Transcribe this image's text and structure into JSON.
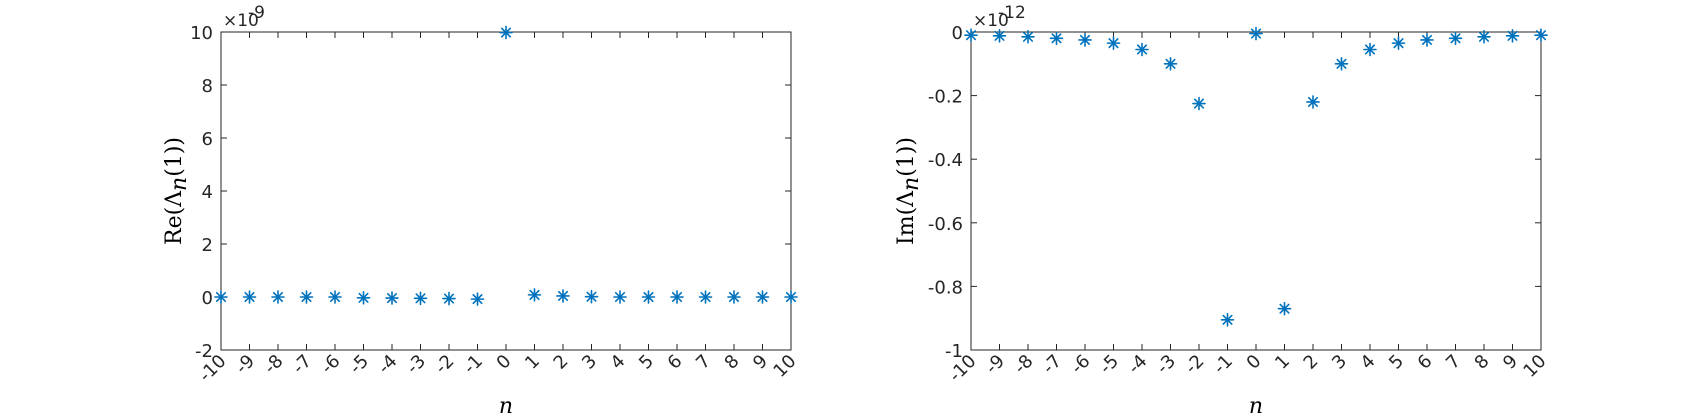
{
  "chart_data": [
    {
      "type": "scatter",
      "marker": "asterisk",
      "marker_color": "#0072BD",
      "title": "",
      "xlabel": "n",
      "ylabel": "Re(Λ_n(1))",
      "ylabel_parts": {
        "prefix": "Re(Λ",
        "sub": "n",
        "suffix": "(1))"
      },
      "y_exponent_label": "×10",
      "y_exponent": "-9",
      "xlim": [
        -10,
        10
      ],
      "ylim": [
        -2,
        10
      ],
      "x_ticks": [
        -10,
        -9,
        -8,
        -7,
        -6,
        -5,
        -4,
        -3,
        -2,
        -1,
        0,
        1,
        2,
        3,
        4,
        5,
        6,
        7,
        8,
        9,
        10
      ],
      "y_ticks": [
        -2,
        0,
        2,
        4,
        6,
        8,
        10
      ],
      "y_tick_labels": [
        "-2",
        "0",
        "2",
        "4",
        "6",
        "8",
        "10"
      ],
      "grid": false,
      "series": [
        {
          "x": [
            -10,
            -9,
            -8,
            -7,
            -6,
            -5,
            -4,
            -3,
            -2,
            -1,
            0,
            1,
            2,
            3,
            4,
            5,
            6,
            7,
            8,
            9,
            10
          ],
          "y": [
            0,
            0,
            0,
            0,
            0,
            -0.03,
            -0.04,
            -0.05,
            -0.06,
            -0.08,
            9.98,
            0.08,
            0.04,
            0.01,
            0,
            0,
            0,
            0,
            0,
            0,
            0
          ]
        }
      ]
    },
    {
      "type": "scatter",
      "marker": "asterisk",
      "marker_color": "#0072BD",
      "title": "",
      "xlabel": "n",
      "ylabel": "Im(Λ_n(1))",
      "ylabel_parts": {
        "prefix": "Im(Λ",
        "sub": "n",
        "suffix": "(1))"
      },
      "y_exponent_label": "×10",
      "y_exponent": "-12",
      "xlim": [
        -10,
        10
      ],
      "ylim": [
        -1,
        0
      ],
      "x_ticks": [
        -10,
        -9,
        -8,
        -7,
        -6,
        -5,
        -4,
        -3,
        -2,
        -1,
        0,
        1,
        2,
        3,
        4,
        5,
        6,
        7,
        8,
        9,
        10
      ],
      "y_ticks": [
        -1,
        -0.8,
        -0.6,
        -0.4,
        -0.2,
        0
      ],
      "y_tick_labels": [
        "-1",
        "-0.8",
        "-0.6",
        "-0.4",
        "-0.2",
        "0"
      ],
      "grid": false,
      "series": [
        {
          "x": [
            -10,
            -9,
            -8,
            -7,
            -6,
            -5,
            -4,
            -3,
            -2,
            -1,
            0,
            1,
            2,
            3,
            4,
            5,
            6,
            7,
            8,
            9,
            10
          ],
          "y": [
            -0.01,
            -0.012,
            -0.015,
            -0.02,
            -0.025,
            -0.035,
            -0.055,
            -0.1,
            -0.225,
            -0.905,
            -0.005,
            -0.87,
            -0.22,
            -0.1,
            -0.055,
            -0.035,
            -0.025,
            -0.02,
            -0.015,
            -0.012,
            -0.01
          ]
        }
      ]
    }
  ]
}
